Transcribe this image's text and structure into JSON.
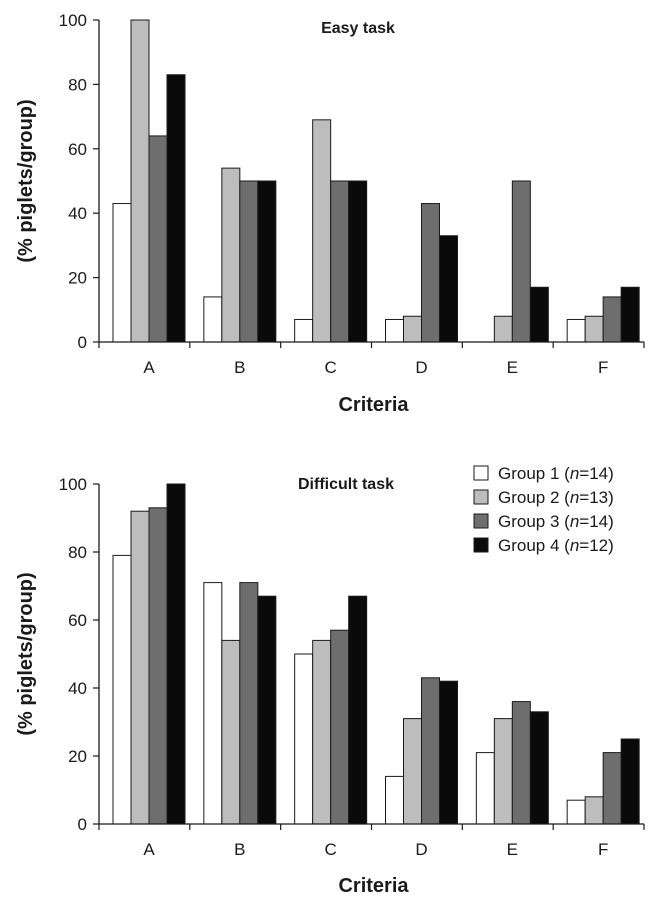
{
  "chart_data": [
    {
      "type": "bar",
      "title": "Easy task",
      "xlabel": "Criteria",
      "ylabel": "(% piglets/group)",
      "categories": [
        "A",
        "B",
        "C",
        "D",
        "E",
        "F"
      ],
      "ylim": [
        0,
        100
      ],
      "yticks": [
        0,
        20,
        40,
        60,
        80,
        100
      ],
      "series": [
        {
          "name": "Group 1 (n=14)",
          "color": "#ffffff",
          "values": [
            43,
            14,
            7,
            7,
            0,
            7
          ]
        },
        {
          "name": "Group 2 (n=13)",
          "color": "#bdbdbd",
          "values": [
            100,
            54,
            69,
            8,
            8,
            8
          ]
        },
        {
          "name": "Group 3 (n=14)",
          "color": "#6e6e6e",
          "values": [
            64,
            50,
            50,
            43,
            50,
            14
          ]
        },
        {
          "name": "Group 4 (n=12)",
          "color": "#0a0a0a",
          "values": [
            83,
            50,
            50,
            33,
            17,
            17
          ]
        }
      ]
    },
    {
      "type": "bar",
      "title": "Difficult task",
      "xlabel": "Criteria",
      "ylabel": "(% piglets/group)",
      "categories": [
        "A",
        "B",
        "C",
        "D",
        "E",
        "F"
      ],
      "ylim": [
        0,
        100
      ],
      "yticks": [
        0,
        20,
        40,
        60,
        80,
        100
      ],
      "legend_position": "top-right",
      "series": [
        {
          "name": "Group 1 (n=14)",
          "color": "#ffffff",
          "values": [
            79,
            71,
            50,
            14,
            21,
            7
          ]
        },
        {
          "name": "Group 2 (n=13)",
          "color": "#bdbdbd",
          "values": [
            92,
            54,
            54,
            31,
            31,
            8
          ]
        },
        {
          "name": "Group 3 (n=14)",
          "color": "#6e6e6e",
          "values": [
            93,
            71,
            57,
            43,
            36,
            21
          ]
        },
        {
          "name": "Group 4 (n=12)",
          "color": "#0a0a0a",
          "values": [
            100,
            67,
            67,
            42,
            33,
            25
          ]
        }
      ]
    }
  ],
  "legend": {
    "items": [
      {
        "prefix": "Group 1 (",
        "n_italic": "n",
        "suffix": "=14)",
        "color": "#ffffff"
      },
      {
        "prefix": "Group 2 (",
        "n_italic": "n",
        "suffix": "=13)",
        "color": "#bdbdbd"
      },
      {
        "prefix": "Group 3 (",
        "n_italic": "n",
        "suffix": "=14)",
        "color": "#6e6e6e"
      },
      {
        "prefix": "Group 4 (",
        "n_italic": "n",
        "suffix": "=12)",
        "color": "#0a0a0a"
      }
    ]
  }
}
